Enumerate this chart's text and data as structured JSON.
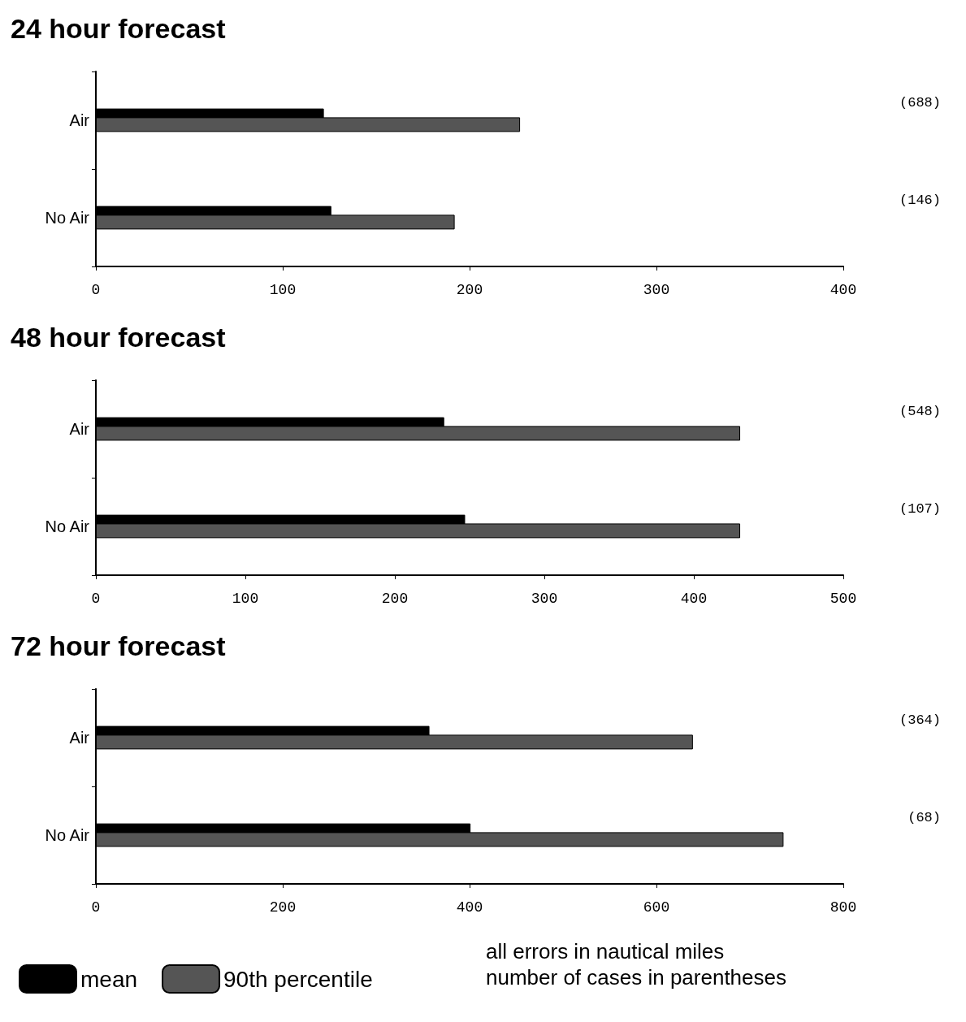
{
  "chart_data": [
    {
      "type": "bar",
      "orientation": "horizontal",
      "title": "24 hour forecast",
      "categories": [
        "Air",
        "No Air"
      ],
      "series": [
        {
          "color": "#000000",
          "values": [
            122,
            126
          ]
        },
        {
          "color": "#555555",
          "values": [
            227,
            192
          ]
        }
      ],
      "xlim": [
        0,
        400
      ],
      "xticks": [
        0,
        100,
        200,
        300,
        400
      ],
      "grid": false,
      "legend": false,
      "annotations": [
        "(688)",
        "(146)"
      ]
    },
    {
      "type": "bar",
      "orientation": "horizontal",
      "title": "48 hour forecast",
      "categories": [
        "Air",
        "No Air"
      ],
      "series": [
        {
          "color": "#000000",
          "values": [
            233,
            247
          ]
        },
        {
          "color": "#555555",
          "values": [
            431,
            431
          ]
        }
      ],
      "xlim": [
        0,
        500
      ],
      "xticks": [
        0,
        100,
        200,
        300,
        400,
        500
      ],
      "grid": false,
      "legend": false,
      "annotations": [
        "(548)",
        "(107)"
      ]
    },
    {
      "type": "bar",
      "orientation": "horizontal",
      "title": "72 hour forecast",
      "categories": [
        "Air",
        "No Air"
      ],
      "series": [
        {
          "name": "mean",
          "color": "#000000",
          "values": [
            357,
            401
          ]
        },
        {
          "name": "90th percentile",
          "color": "#555555",
          "values": [
            639,
            736
          ]
        }
      ],
      "xlim": [
        0,
        800
      ],
      "xticks": [
        0,
        200,
        400,
        600,
        800
      ],
      "grid": false,
      "legend": "bottom left",
      "annotations": [
        "(364)",
        "(68)",
        "all errors in nautical miles",
        "number of cases in parentheses"
      ]
    }
  ]
}
